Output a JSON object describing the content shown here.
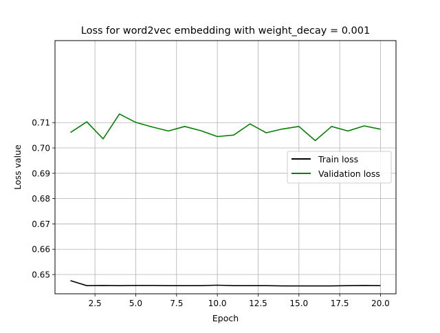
{
  "chart_data": {
    "type": "line",
    "title": "Loss for word2vec embedding with weight_decay = 0.001",
    "xlabel": "Epoch",
    "ylabel": "Loss value",
    "xlim": [
      0.05,
      20.95
    ],
    "ylim": [
      0.6424,
      0.7424
    ],
    "x_ticks": [
      2.5,
      5.0,
      7.5,
      10.0,
      12.5,
      15.0,
      17.5,
      20.0
    ],
    "x_tick_labels": [
      "2.5",
      "5.0",
      "7.5",
      "10.0",
      "12.5",
      "15.0",
      "17.5",
      "20.0"
    ],
    "y_ticks": [
      0.65,
      0.66,
      0.67,
      0.68,
      0.69,
      0.7,
      0.71
    ],
    "y_tick_labels": [
      "0.65",
      "0.66",
      "0.67",
      "0.68",
      "0.69",
      "0.70",
      "0.71"
    ],
    "grid": true,
    "legend_position": "center-right",
    "x": [
      1,
      2,
      3,
      4,
      5,
      6,
      7,
      8,
      9,
      10,
      11,
      12,
      13,
      14,
      15,
      16,
      17,
      18,
      19,
      20
    ],
    "series": [
      {
        "name": "Train loss",
        "color": "#000000",
        "values": [
          0.6476,
          0.6456,
          0.6457,
          0.6456,
          0.6457,
          0.6457,
          0.6456,
          0.6456,
          0.6456,
          0.6458,
          0.6456,
          0.6456,
          0.6456,
          0.6455,
          0.6455,
          0.6455,
          0.6455,
          0.6456,
          0.6457,
          0.6456
        ]
      },
      {
        "name": "Validation loss",
        "color": "#008000",
        "values": [
          0.7061,
          0.7103,
          0.7036,
          0.7134,
          0.7101,
          0.7083,
          0.7067,
          0.7085,
          0.7068,
          0.7045,
          0.7051,
          0.7095,
          0.706,
          0.7075,
          0.7085,
          0.7029,
          0.7085,
          0.7067,
          0.7087,
          0.7074
        ]
      }
    ]
  }
}
